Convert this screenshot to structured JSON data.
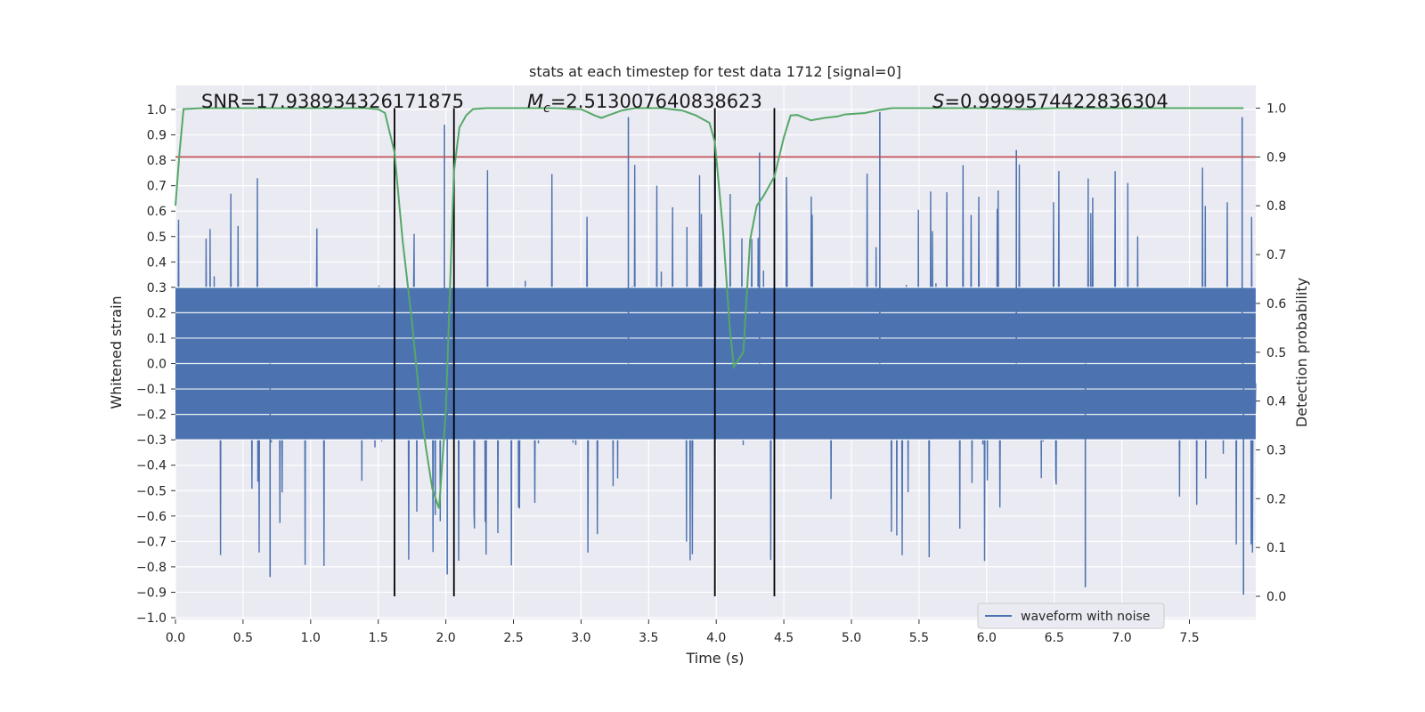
{
  "chart_data": {
    "type": "line",
    "title": "stats at each timestep for test data 1712 [signal=0]",
    "xlabel": "Time (s)",
    "ylabel": "Whitened strain",
    "ylabel_right": "Detection probability",
    "xlim": [
      0.0,
      8.0
    ],
    "ylim": [
      -1.0,
      1.0
    ],
    "ylim_right": [
      0.0,
      1.0
    ],
    "x_ticks": [
      "0.0",
      "0.5",
      "1.0",
      "1.5",
      "2.0",
      "2.5",
      "3.0",
      "3.5",
      "4.0",
      "4.5",
      "5.0",
      "5.5",
      "6.0",
      "6.5",
      "7.0",
      "7.5"
    ],
    "y_ticks": [
      "1.0",
      "0.9",
      "0.8",
      "0.7",
      "0.6",
      "0.5",
      "0.4",
      "0.3",
      "0.2",
      "0.1",
      "0.0",
      "−0.1",
      "−0.2",
      "−0.3",
      "−0.4",
      "−0.5",
      "−0.6",
      "−0.7",
      "−0.8",
      "−0.9",
      "−1.0"
    ],
    "y_right_ticks": [
      "1.0",
      "0.9",
      "0.8",
      "0.7",
      "0.6",
      "0.5",
      "0.4",
      "0.3",
      "0.2",
      "0.1",
      "0.0"
    ],
    "annotations": {
      "snr": "SNR=17.938934326171875",
      "mc_symbol": "M",
      "mc_sub": "c",
      "mc_value": "=2.513007640838623",
      "s_symbol": "S",
      "s_value": "=0.9999574422836304"
    },
    "threshold": {
      "value_right": 0.9,
      "color": "#c44e52"
    },
    "vertical_lines": [
      1.62,
      2.06,
      3.99,
      4.43
    ],
    "series": [
      {
        "name": "waveform with noise",
        "color": "#4c72b0",
        "kind": "noise",
        "envelope_abs": 0.3,
        "peak_range": [
          -0.91,
          0.97
        ]
      },
      {
        "color": "#55a868",
        "axis": "right",
        "x": [
          0.0,
          0.03,
          0.06,
          0.2,
          0.5,
          0.8,
          1.0,
          1.2,
          1.4,
          1.5,
          1.55,
          1.62,
          1.68,
          1.75,
          1.8,
          1.85,
          1.9,
          1.95,
          2.0,
          2.06,
          2.1,
          2.15,
          2.2,
          2.3,
          2.5,
          2.8,
          3.0,
          3.1,
          3.15,
          3.2,
          3.3,
          3.4,
          3.6,
          3.75,
          3.85,
          3.95,
          3.99,
          4.05,
          4.1,
          4.13,
          4.2,
          4.25,
          4.3,
          4.35,
          4.43,
          4.5,
          4.55,
          4.6,
          4.7,
          4.8,
          4.9,
          4.95,
          5.1,
          5.2,
          5.3,
          5.6,
          6.0,
          6.3,
          6.5,
          7.0,
          7.5,
          7.9
        ],
        "y": [
          0.8,
          0.91,
          0.998,
          1.0,
          1.0,
          1.0,
          1.0,
          1.0,
          1.0,
          0.998,
          0.99,
          0.91,
          0.73,
          0.56,
          0.42,
          0.31,
          0.22,
          0.18,
          0.38,
          0.87,
          0.96,
          0.985,
          0.998,
          1.0,
          1.0,
          1.0,
          0.998,
          0.985,
          0.98,
          0.985,
          0.995,
          1.0,
          1.0,
          0.995,
          0.985,
          0.97,
          0.93,
          0.75,
          0.55,
          0.47,
          0.5,
          0.73,
          0.8,
          0.82,
          0.86,
          0.94,
          0.985,
          0.986,
          0.975,
          0.98,
          0.983,
          0.987,
          0.99,
          0.996,
          1.0,
          1.0,
          1.0,
          0.998,
          1.0,
          1.0,
          1.0,
          1.0
        ]
      }
    ],
    "legend": {
      "position": "lower right"
    },
    "grid": true,
    "colors": {
      "background": "#eaeaf2",
      "grid": "#ffffff",
      "vline": "#000000"
    }
  }
}
